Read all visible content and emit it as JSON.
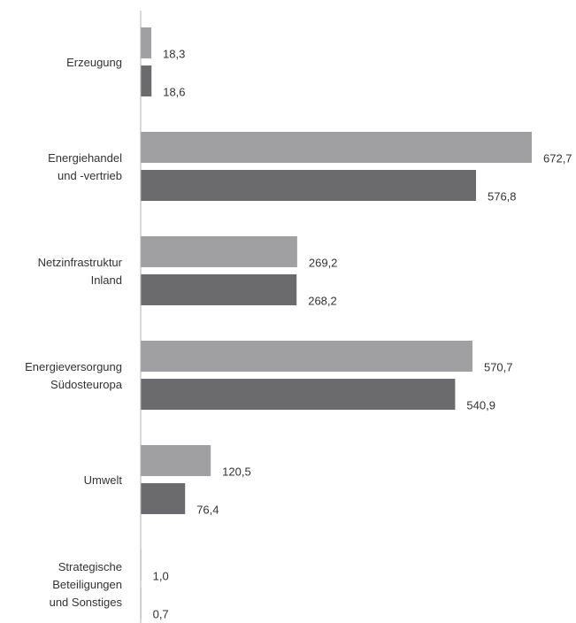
{
  "chart_data": {
    "type": "bar",
    "orientation": "horizontal",
    "categories": [
      [
        "Erzeugung"
      ],
      [
        "Energiehandel",
        "und -vertrieb"
      ],
      [
        "Netzinfrastruktur",
        "Inland"
      ],
      [
        "Energieversorgung",
        "Südosteuropa"
      ],
      [
        "Umwelt"
      ],
      [
        "Strategische",
        "Beteiligungen",
        "und Sonstiges"
      ]
    ],
    "series": [
      {
        "values": [
          18.3,
          672.7,
          269.2,
          570.7,
          120.5,
          1.0
        ],
        "labels": [
          "18,3",
          "672,7",
          "269,2",
          "570,7",
          "120,5",
          "1,0"
        ],
        "color": "#a0a0a2"
      },
      {
        "values": [
          18.6,
          576.8,
          268.2,
          540.9,
          76.4,
          0.7
        ],
        "labels": [
          "18,6",
          "576,8",
          "268,2",
          "540,9",
          "76,4",
          "0,7"
        ],
        "color": "#6b6b6e"
      }
    ],
    "xlim": [
      0,
      672.7
    ],
    "grid": false,
    "legend": "none",
    "axis_color": "#b0b0b0"
  }
}
